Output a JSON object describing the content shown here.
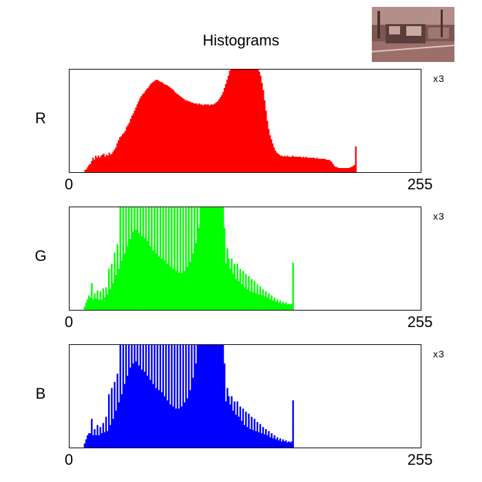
{
  "chart_data": {
    "type": "bar",
    "title": "Histograms",
    "thumbnail": {
      "name": "thumbnail-image",
      "palette": [
        "#6e4a48",
        "#a8807a",
        "#4c3433",
        "#c9a49c",
        "#8a5e58"
      ]
    },
    "channels": [
      {
        "key": "R",
        "label": "R",
        "color": "#ff0000",
        "scale_label": "x3",
        "xmin_label": "0",
        "xmax_label": "255",
        "xlim": [
          0,
          255
        ],
        "ylim": [
          0,
          100
        ],
        "values": [
          0,
          0,
          0,
          0,
          0,
          0,
          0,
          0,
          0,
          0,
          0,
          2,
          3,
          5,
          7,
          8,
          11,
          14,
          12,
          16,
          14,
          16,
          14,
          16,
          17,
          18,
          15,
          17,
          16,
          19,
          17,
          18,
          20,
          22,
          24,
          28,
          31,
          34,
          35,
          37,
          38,
          40,
          44,
          46,
          48,
          52,
          55,
          57,
          60,
          63,
          66,
          69,
          72,
          74,
          76,
          77,
          79,
          81,
          82,
          84,
          86,
          87,
          88,
          89,
          90,
          90,
          89,
          88,
          88,
          87,
          86,
          85,
          85,
          84,
          83,
          82,
          81,
          80,
          78,
          77,
          76,
          75,
          74,
          73,
          72,
          71,
          70,
          70,
          69,
          69,
          68,
          68,
          67,
          67,
          67,
          66,
          67,
          66,
          66,
          65,
          66,
          66,
          66,
          66,
          65,
          66,
          66,
          66,
          67,
          68,
          69,
          71,
          73,
          75,
          78,
          82,
          86,
          90,
          94,
          99,
          100,
          100,
          100,
          100,
          100,
          100,
          100,
          100,
          100,
          100,
          100,
          100,
          100,
          100,
          100,
          100,
          100,
          100,
          100,
          100,
          100,
          98,
          94,
          87,
          80,
          70,
          60,
          50,
          42,
          36,
          32,
          28,
          24,
          21,
          19,
          18,
          17,
          16,
          16,
          15,
          16,
          15,
          16,
          15,
          15,
          15,
          16,
          15,
          15,
          15,
          15,
          15,
          15,
          14,
          15,
          14,
          15,
          14,
          14,
          14,
          14,
          14,
          14,
          13,
          14,
          13,
          13,
          13,
          13,
          13,
          13,
          12,
          12,
          12,
          11,
          10,
          8,
          6,
          5,
          5,
          4,
          4,
          4,
          4,
          4,
          4,
          4,
          4,
          4,
          5,
          5,
          6,
          7,
          25,
          0,
          0,
          0,
          0,
          0,
          0,
          0,
          0,
          0,
          0,
          0,
          0,
          0,
          0,
          0,
          0,
          0,
          0,
          0,
          0,
          0,
          0,
          0,
          0,
          0,
          0,
          0,
          0,
          0,
          0,
          0,
          0,
          0,
          0,
          0,
          0,
          0,
          0,
          0,
          0,
          0,
          0,
          0,
          0,
          0,
          0,
          0,
          0
        ]
      },
      {
        "key": "G",
        "label": "G",
        "color": "#00ff00",
        "scale_label": "x3",
        "xmin_label": "0",
        "xmax_label": "255",
        "xlim": [
          0,
          255
        ],
        "ylim": [
          0,
          100
        ],
        "values": [
          0,
          0,
          0,
          0,
          0,
          0,
          0,
          0,
          0,
          0,
          3,
          7,
          10,
          14,
          12,
          26,
          10,
          16,
          11,
          19,
          10,
          18,
          10,
          21,
          12,
          22,
          15,
          40,
          20,
          45,
          26,
          56,
          34,
          64,
          40,
          100,
          48,
          100,
          55,
          100,
          62,
          100,
          69,
          100,
          76,
          100,
          78,
          100,
          75,
          100,
          72,
          100,
          70,
          100,
          67,
          100,
          62,
          100,
          58,
          100,
          55,
          100,
          52,
          100,
          50,
          100,
          48,
          100,
          45,
          100,
          42,
          100,
          40,
          100,
          38,
          100,
          36,
          100,
          36,
          100,
          38,
          100,
          42,
          100,
          47,
          100,
          55,
          100,
          65,
          100,
          80,
          100,
          100,
          100,
          100,
          100,
          100,
          100,
          100,
          100,
          100,
          100,
          100,
          100,
          100,
          100,
          100,
          100,
          80,
          45,
          60,
          50,
          40,
          50,
          35,
          45,
          30,
          45,
          28,
          40,
          25,
          38,
          22,
          35,
          20,
          33,
          18,
          30,
          17,
          28,
          16,
          25,
          15,
          23,
          14,
          20,
          13,
          18,
          12,
          16,
          10,
          14,
          9,
          12,
          8,
          10,
          7,
          9,
          6,
          8,
          6,
          7,
          5,
          6,
          5,
          6,
          46,
          0,
          0,
          0,
          0,
          0,
          0,
          0,
          0,
          0,
          0,
          0,
          0,
          0,
          0,
          0,
          0,
          0,
          0,
          0,
          0,
          0,
          0,
          0,
          0,
          0,
          0,
          0,
          0,
          0,
          0,
          0,
          0,
          0,
          0,
          0,
          0,
          0,
          0,
          0,
          0,
          0,
          0,
          0,
          0,
          0,
          0,
          0,
          0,
          0,
          0,
          0,
          0,
          0,
          0,
          0,
          0,
          0,
          0,
          0,
          0,
          0,
          0,
          0,
          0,
          0,
          0,
          0,
          0,
          0,
          0,
          0,
          0,
          0,
          0,
          0,
          0,
          0,
          0,
          0,
          0,
          0,
          0,
          0,
          0,
          0,
          0,
          0,
          0,
          0
        ]
      },
      {
        "key": "B",
        "label": "B",
        "color": "#0000ff",
        "scale_label": "x3",
        "xmin_label": "0",
        "xmax_label": "255",
        "xlim": [
          0,
          255
        ],
        "ylim": [
          0,
          100
        ],
        "values": [
          0,
          0,
          0,
          0,
          0,
          0,
          0,
          0,
          0,
          0,
          4,
          8,
          12,
          14,
          14,
          28,
          12,
          18,
          12,
          22,
          12,
          20,
          14,
          24,
          15,
          30,
          16,
          52,
          22,
          58,
          28,
          64,
          36,
          72,
          44,
          100,
          52,
          100,
          62,
          100,
          70,
          100,
          78,
          100,
          82,
          100,
          84,
          100,
          80,
          100,
          76,
          100,
          74,
          100,
          70,
          100,
          66,
          100,
          62,
          100,
          58,
          100,
          56,
          100,
          54,
          100,
          50,
          100,
          46,
          100,
          42,
          100,
          40,
          100,
          38,
          100,
          38,
          100,
          40,
          100,
          44,
          100,
          48,
          100,
          56,
          100,
          68,
          100,
          82,
          100,
          100,
          100,
          100,
          100,
          100,
          100,
          100,
          100,
          100,
          100,
          100,
          100,
          100,
          100,
          100,
          100,
          100,
          100,
          82,
          45,
          58,
          50,
          42,
          50,
          36,
          45,
          32,
          45,
          30,
          40,
          26,
          38,
          22,
          35,
          20,
          33,
          18,
          30,
          17,
          28,
          16,
          25,
          15,
          23,
          14,
          20,
          13,
          18,
          12,
          16,
          10,
          14,
          9,
          12,
          8,
          10,
          7,
          9,
          6,
          8,
          6,
          7,
          5,
          6,
          5,
          6,
          46,
          0,
          0,
          0,
          0,
          0,
          0,
          0,
          0,
          0,
          0,
          0,
          0,
          0,
          0,
          0,
          0,
          0,
          0,
          0,
          0,
          0,
          0,
          0,
          0,
          0,
          0,
          0,
          0,
          0,
          0,
          0,
          0,
          0,
          0,
          0,
          0,
          0,
          0,
          0,
          0,
          0,
          0,
          0,
          0,
          0,
          0,
          0,
          0,
          0,
          0,
          0,
          0,
          0,
          0,
          0,
          0,
          0,
          0,
          0,
          0,
          0,
          0,
          0,
          0,
          0,
          0,
          0,
          0,
          0,
          0,
          0,
          0,
          0,
          0,
          0,
          0,
          0,
          0,
          0,
          0,
          0,
          0,
          0,
          0,
          0,
          0,
          0,
          0,
          0
        ]
      }
    ]
  }
}
